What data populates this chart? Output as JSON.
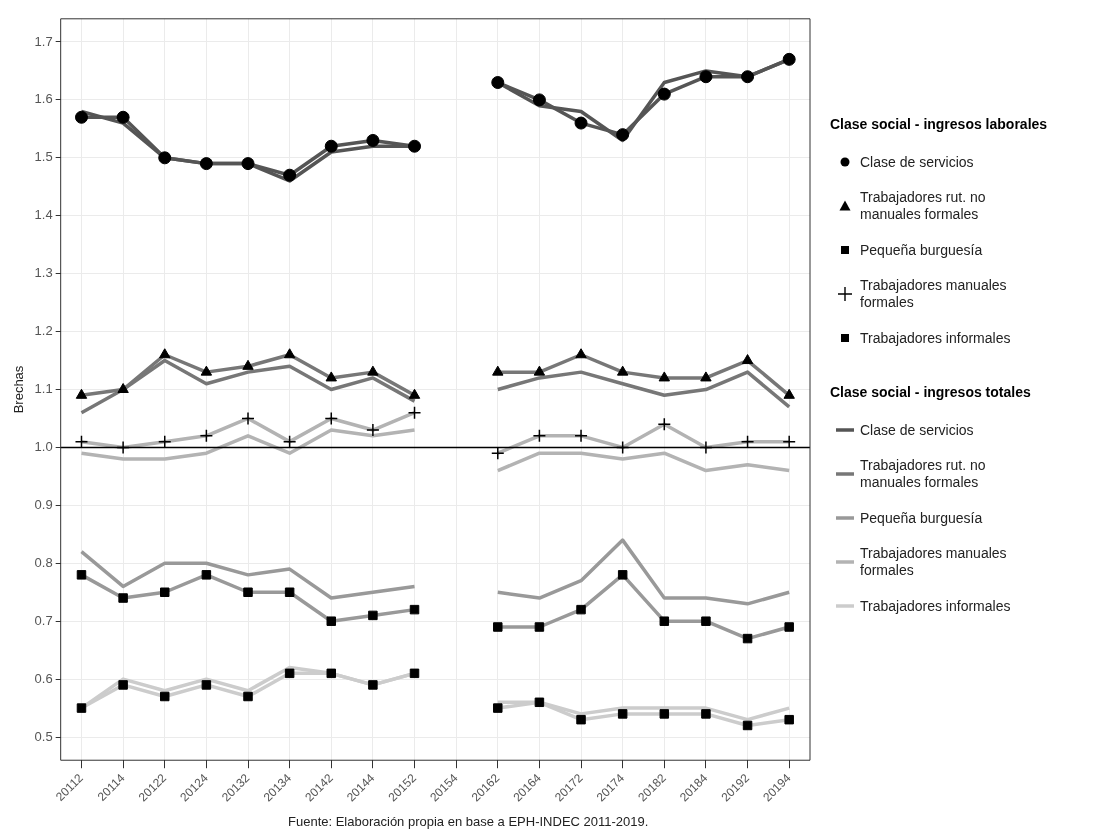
{
  "chart_data": {
    "type": "line",
    "ylabel": "Brechas",
    "legend_title": [
      "Clase social - ingresos laborales",
      "Clase social - ingresos totales"
    ],
    "categories": [
      "20112",
      "20114",
      "20122",
      "20124",
      "20132",
      "20134",
      "20142",
      "20144",
      "20152",
      "20154",
      "20162",
      "20164",
      "20172",
      "20174",
      "20182",
      "20184",
      "20192",
      "20194"
    ],
    "ylim": [
      0.46,
      1.74
    ],
    "yticks": [
      {
        "value": 0.5,
        "label": "0.5"
      },
      {
        "value": 0.6,
        "label": "0.6"
      },
      {
        "value": 0.7,
        "label": "0.7"
      },
      {
        "value": 0.8,
        "label": "0.8"
      },
      {
        "value": 0.9,
        "label": "0.9"
      },
      {
        "value": 1.0,
        "label": "1.0"
      },
      {
        "value": 1.1,
        "label": "1.1"
      },
      {
        "value": 1.2,
        "label": "1.2"
      },
      {
        "value": 1.3,
        "label": "1.3"
      },
      {
        "value": 1.4,
        "label": "1.4"
      },
      {
        "value": 1.5,
        "label": "1.5"
      },
      {
        "value": 1.6,
        "label": "1.6"
      },
      {
        "value": 1.7,
        "label": "1.7"
      }
    ],
    "grid": true,
    "legend": "right",
    "line_style": "solid",
    "ref_lines": [
      {
        "axis": "y",
        "value": 1.0,
        "color": "#000000"
      }
    ],
    "annotations": [
      "Fuente: Elaboración propia en base a EPH-INDEC 2011-2019."
    ],
    "series": [
      {
        "name": "Clase de servicios",
        "color": "#555555",
        "marker": "circle",
        "values": [
          1.57,
          1.57,
          1.5,
          1.49,
          1.49,
          1.47,
          1.52,
          1.53,
          1.52,
          null,
          1.63,
          1.6,
          1.56,
          1.54,
          1.61,
          1.64,
          1.64,
          1.67
        ]
      },
      {
        "name": "Trabajadores rut. no manuales formales",
        "color": "#777777",
        "marker": "triangle",
        "values": [
          1.09,
          1.1,
          1.16,
          1.13,
          1.14,
          1.16,
          1.12,
          1.13,
          1.09,
          null,
          1.13,
          1.13,
          1.16,
          1.13,
          1.12,
          1.12,
          1.15,
          1.09
        ]
      },
      {
        "name": "Pequeña burguesía",
        "color": "#999999",
        "marker": "square",
        "values": [
          0.78,
          0.74,
          0.75,
          0.78,
          0.75,
          0.75,
          0.7,
          0.71,
          0.72,
          null,
          0.69,
          0.69,
          0.72,
          0.78,
          0.7,
          0.7,
          0.67,
          0.69
        ]
      },
      {
        "name": "Trabajadores manuales formales",
        "color": "#b3b3b3",
        "marker": "cross",
        "values": [
          1.01,
          1.0,
          1.01,
          1.02,
          1.05,
          1.01,
          1.05,
          1.03,
          1.06,
          null,
          0.99,
          1.02,
          1.02,
          1.0,
          1.04,
          1.0,
          1.01,
          1.01
        ]
      },
      {
        "name": "Trabajadores informales",
        "color": "#cccccc",
        "marker": "square",
        "values": [
          0.55,
          0.59,
          0.57,
          0.59,
          0.57,
          0.61,
          0.61,
          0.59,
          0.61,
          null,
          0.55,
          0.56,
          0.53,
          0.54,
          0.54,
          0.54,
          0.52,
          0.53
        ]
      },
      {
        "name": "Clase de servicios",
        "color": "#555555",
        "marker": "none",
        "values": [
          1.58,
          1.56,
          1.5,
          1.49,
          1.49,
          1.46,
          1.51,
          1.52,
          1.52,
          null,
          1.63,
          1.59,
          1.58,
          1.53,
          1.63,
          1.65,
          1.64,
          1.67
        ]
      },
      {
        "name": "Trabajadores rut. no manuales formales",
        "color": "#777777",
        "marker": "none",
        "values": [
          1.06,
          1.1,
          1.15,
          1.11,
          1.13,
          1.14,
          1.1,
          1.12,
          1.08,
          null,
          1.1,
          1.12,
          1.13,
          1.11,
          1.09,
          1.1,
          1.13,
          1.07
        ]
      },
      {
        "name": "Pequeña burguesía",
        "color": "#999999",
        "marker": "none",
        "values": [
          0.82,
          0.76,
          0.8,
          0.8,
          0.78,
          0.79,
          0.74,
          0.75,
          0.76,
          null,
          0.75,
          0.74,
          0.77,
          0.84,
          0.74,
          0.74,
          0.73,
          0.75
        ]
      },
      {
        "name": "Trabajadores manuales formales",
        "color": "#b3b3b3",
        "marker": "none",
        "values": [
          0.99,
          0.98,
          0.98,
          0.99,
          1.02,
          0.99,
          1.03,
          1.02,
          1.03,
          null,
          0.96,
          0.99,
          0.99,
          0.98,
          0.99,
          0.96,
          0.97,
          0.96
        ]
      },
      {
        "name": "Trabajadores informales",
        "color": "#cccccc",
        "marker": "none",
        "values": [
          0.55,
          0.6,
          0.58,
          0.6,
          0.58,
          0.62,
          0.61,
          0.59,
          0.61,
          null,
          0.56,
          0.56,
          0.54,
          0.55,
          0.55,
          0.55,
          0.53,
          0.55
        ]
      }
    ]
  }
}
